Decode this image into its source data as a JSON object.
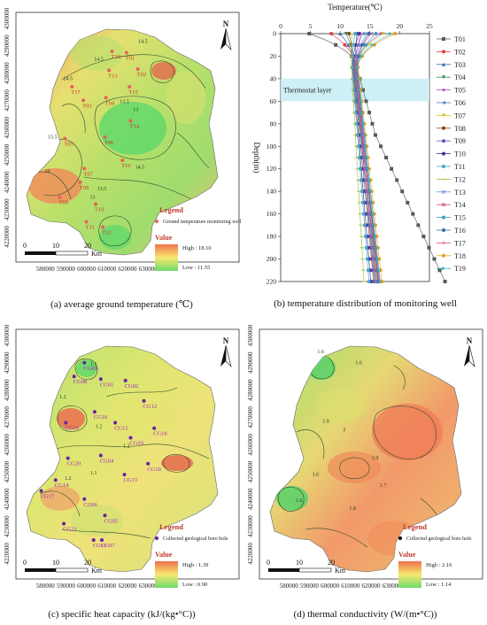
{
  "captions": {
    "a": "(a) average ground temperature (℃)",
    "b": "(b) temperature distribution of  monitoring well",
    "c": "(c) specific heat capacity (kJ/(kg•°C))",
    "d": "(d) thermal conductivity (W/(m•°C))"
  },
  "map_a": {
    "north": "N",
    "legend_title": "Legend",
    "legend_item": "Ground temperature monitoring well",
    "value_title": "Value",
    "high": "High : 18.10",
    "low": "Low : 11.55",
    "scale": [
      "0",
      "10",
      "20",
      "Km"
    ],
    "x_ticks": [
      "580000",
      "590000",
      "600000",
      "610000",
      "620000",
      "630000",
      "640000"
    ],
    "y_ticks": [
      "4300000",
      "4290000",
      "4280000",
      "4270000",
      "4260000",
      "4250000",
      "4240000",
      "4230000",
      "4220000"
    ],
    "point_color": "#e8615c",
    "wells": [
      {
        "name": "T18",
        "x": 612500,
        "y": 4288000
      },
      {
        "name": "T01",
        "x": 619500,
        "y": 4287500
      },
      {
        "name": "T13",
        "x": 611000,
        "y": 4281000
      },
      {
        "name": "T02",
        "x": 625000,
        "y": 4281500
      },
      {
        "name": "T17",
        "x": 593000,
        "y": 4275000
      },
      {
        "name": "T15",
        "x": 621000,
        "y": 4275000
      },
      {
        "name": "T03",
        "x": 598500,
        "y": 4270000
      },
      {
        "name": "T04",
        "x": 609500,
        "y": 4271000
      },
      {
        "name": "T14",
        "x": 621500,
        "y": 4262500
      },
      {
        "name": "T05",
        "x": 589500,
        "y": 4256000
      },
      {
        "name": "T06",
        "x": 609000,
        "y": 4256500
      },
      {
        "name": "T16",
        "x": 617500,
        "y": 4248000
      },
      {
        "name": "T07",
        "x": 599000,
        "y": 4245000
      },
      {
        "name": "T09",
        "x": 597000,
        "y": 4240000
      },
      {
        "name": "T08",
        "x": 587000,
        "y": 4234500
      },
      {
        "name": "T10",
        "x": 604500,
        "y": 4232000
      },
      {
        "name": "T11",
        "x": 600000,
        "y": 4225500
      },
      {
        "name": "T12",
        "x": 608000,
        "y": 4223500
      }
    ],
    "contour_labels": [
      {
        "t": "14.5",
        "x": 606000,
        "y": 4284500
      },
      {
        "t": "14.5",
        "x": 627500,
        "y": 4291000
      },
      {
        "t": "14.5",
        "x": 591000,
        "y": 4277500
      },
      {
        "t": "13.5",
        "x": 618500,
        "y": 4269000
      },
      {
        "t": "13",
        "x": 624000,
        "y": 4266000
      },
      {
        "t": "15.5",
        "x": 583500,
        "y": 4256000
      },
      {
        "t": "14.5",
        "x": 626000,
        "y": 4245000
      },
      {
        "t": "16",
        "x": 581000,
        "y": 4243500
      },
      {
        "t": "13",
        "x": 603000,
        "y": 4234000
      },
      {
        "t": "13.5",
        "x": 607500,
        "y": 4237000
      }
    ]
  },
  "chart_data": {
    "type": "line",
    "title": "Temperature(℃)",
    "ylabel": "Depth(m)",
    "xlim": [
      0,
      25
    ],
    "ylim": [
      0,
      220
    ],
    "x_ticks": [
      0,
      5,
      10,
      15,
      20,
      25
    ],
    "y_ticks": [
      0,
      20,
      40,
      60,
      80,
      100,
      120,
      140,
      160,
      180,
      200,
      220
    ],
    "annotation": "Thermostat layer",
    "annotation_band": [
      40,
      60
    ],
    "depths": [
      0,
      5,
      10,
      15,
      20,
      25,
      30,
      35,
      40,
      45,
      50,
      55,
      60,
      65,
      70,
      75,
      80,
      85,
      90,
      95,
      100,
      105,
      110,
      115,
      120,
      125,
      130,
      135,
      140,
      145,
      150,
      155,
      160,
      165,
      170,
      175,
      180,
      185,
      190,
      195,
      200,
      205,
      210,
      215,
      220
    ],
    "series": [
      {
        "name": "T01",
        "color": "#595959",
        "marker": "square",
        "surface": 4.8,
        "base": 12.8,
        "gradient": 0.052
      },
      {
        "name": "T02",
        "color": "#e04040",
        "marker": "circle",
        "surface": 8.5,
        "base": 12.6,
        "gradient": 0.021
      },
      {
        "name": "T03",
        "color": "#2f63b8",
        "marker": "triangle",
        "surface": 10.0,
        "base": 12.4,
        "gradient": 0.02
      },
      {
        "name": "T04",
        "color": "#2e8b57",
        "marker": "triangle-down",
        "surface": 11.0,
        "base": 12.3,
        "gradient": 0.019
      },
      {
        "name": "T05",
        "color": "#b050c0",
        "marker": "diamond",
        "surface": 16.8,
        "base": 12.5,
        "gradient": 0.021
      },
      {
        "name": "T06",
        "color": "#4a76c6",
        "marker": "triangle-left",
        "surface": 13.8,
        "base": 12.4,
        "gradient": 0.02
      },
      {
        "name": "T07",
        "color": "#d4c21a",
        "marker": "triangle-down",
        "surface": 17.2,
        "base": 12.8,
        "gradient": 0.018
      },
      {
        "name": "T08",
        "color": "#8b4513",
        "marker": "circle",
        "surface": 11.5,
        "base": 12.2,
        "gradient": 0.018
      },
      {
        "name": "T09",
        "color": "#5c5cb8",
        "marker": "star",
        "surface": 12.8,
        "base": 12.5,
        "gradient": 0.017
      },
      {
        "name": "T10",
        "color": "#333399",
        "marker": "pentagon",
        "surface": 13.2,
        "base": 12.1,
        "gradient": 0.016
      },
      {
        "name": "T11",
        "color": "#4aa3d8",
        "marker": "circle",
        "surface": 12.5,
        "base": 12.0,
        "gradient": 0.015
      },
      {
        "name": "T12",
        "color": "#a0c030",
        "marker": "dash",
        "surface": 12.0,
        "base": 11.9,
        "gradient": 0.011
      },
      {
        "name": "T13",
        "color": "#6b8ed6",
        "marker": "x",
        "surface": 14.5,
        "base": 12.6,
        "gradient": 0.018
      },
      {
        "name": "T14",
        "color": "#d24080",
        "marker": "x",
        "surface": 15.2,
        "base": 12.7,
        "gradient": 0.019
      },
      {
        "name": "T15",
        "color": "#3c9cd0",
        "marker": "star",
        "surface": 16.0,
        "base": 12.9,
        "gradient": 0.02
      },
      {
        "name": "T16",
        "color": "#2a6fb0",
        "marker": "circle",
        "surface": 14.8,
        "base": 12.8,
        "gradient": 0.019
      },
      {
        "name": "T17",
        "color": "#d94f8a",
        "marker": "plus",
        "surface": 13.5,
        "base": 12.6,
        "gradient": 0.018
      },
      {
        "name": "T18",
        "color": "#e8a020",
        "marker": "circle",
        "surface": 19.2,
        "base": 13.0,
        "gradient": 0.021
      },
      {
        "name": "T19",
        "color": "#30b0c0",
        "marker": "triangle-right",
        "surface": 18.5,
        "base": 12.9,
        "gradient": 0.02
      }
    ]
  },
  "map_c": {
    "north": "N",
    "legend_title": "Legend",
    "legend_item": "Collected geological bore hole",
    "value_title": "Value",
    "high": "High : 1.39",
    "low": "Low : 0.90",
    "scale": [
      "0",
      "10",
      "20",
      "Km"
    ],
    "x_ticks": [
      "580000",
      "590000",
      "600000",
      "610000",
      "620000",
      "630000",
      "640000"
    ],
    "y_ticks": [
      "4300000",
      "4290000",
      "4280000",
      "4270000",
      "4260000",
      "4250000",
      "4240000",
      "4230000",
      "4220000"
    ],
    "point_color": "#6a1fa8",
    "label_color": "#a020c0",
    "holes": [
      {
        "name": "CG09",
        "x": 599000,
        "y": 4290000
      },
      {
        "name": "CG08",
        "x": 594000,
        "y": 4285000
      },
      {
        "name": "CG01",
        "x": 607000,
        "y": 4284000
      },
      {
        "name": "CG02",
        "x": 619000,
        "y": 4283500
      },
      {
        "name": "CG12",
        "x": 628000,
        "y": 4276000
      },
      {
        "name": "CG16",
        "x": 604000,
        "y": 4272000
      },
      {
        "name": "CG19",
        "x": 590000,
        "y": 4268000
      },
      {
        "name": "CG15",
        "x": 614000,
        "y": 4268000
      },
      {
        "name": "CG18",
        "x": 633000,
        "y": 4266000
      },
      {
        "name": "CG03",
        "x": 621500,
        "y": 4262500
      },
      {
        "name": "CG20",
        "x": 591000,
        "y": 4255000
      },
      {
        "name": "CG04",
        "x": 607000,
        "y": 4256000
      },
      {
        "name": "CG10",
        "x": 630000,
        "y": 4253000
      },
      {
        "name": "CG13",
        "x": 618500,
        "y": 4249000
      },
      {
        "name": "CG14",
        "x": 585000,
        "y": 4247000
      },
      {
        "name": "CG17",
        "x": 578000,
        "y": 4243000
      },
      {
        "name": "CG06",
        "x": 599000,
        "y": 4240000
      },
      {
        "name": "CG05",
        "x": 609000,
        "y": 4234000
      },
      {
        "name": "CG21",
        "x": 589000,
        "y": 4231000
      },
      {
        "name": "CG11",
        "x": 603500,
        "y": 4225000
      },
      {
        "name": "CG07",
        "x": 607500,
        "y": 4225000
      }
    ],
    "contour_labels": [
      {
        "t": "1.1",
        "x": 603500,
        "y": 4289000
      },
      {
        "t": "1.2",
        "x": 588500,
        "y": 4277000
      },
      {
        "t": "1.2",
        "x": 606000,
        "y": 4266000
      },
      {
        "t": "1.2",
        "x": 619500,
        "y": 4259000
      },
      {
        "t": "1.1",
        "x": 603500,
        "y": 4249000
      },
      {
        "t": "1.2",
        "x": 591000,
        "y": 4247000
      }
    ]
  },
  "map_d": {
    "north": "N",
    "legend_title": "Legend",
    "legend_item": "Collected geological bore hole",
    "value_title": "Value",
    "high": "High : 2.16",
    "low": "Low : 1.14",
    "scale": [
      "0",
      "10",
      "20",
      "Km"
    ],
    "x_ticks": [
      "580000",
      "590000",
      "600000",
      "610000",
      "620000",
      "630000",
      "640000"
    ],
    "y_ticks": [
      "4300000",
      "4290000",
      "4280000",
      "4270000",
      "4260000",
      "4250000",
      "4240000",
      "4230000",
      "4220000"
    ],
    "contour_labels": [
      {
        "t": "1.6",
        "x": 595500,
        "y": 4293500
      },
      {
        "t": "1.6",
        "x": 614000,
        "y": 4289500
      },
      {
        "t": "1.9",
        "x": 598000,
        "y": 4268000
      },
      {
        "t": "2",
        "x": 607000,
        "y": 4265000
      },
      {
        "t": "1.9",
        "x": 622000,
        "y": 4254500
      },
      {
        "t": "1.6",
        "x": 593000,
        "y": 4248500
      },
      {
        "t": "1.7",
        "x": 626000,
        "y": 4244500
      },
      {
        "t": "1.6",
        "x": 585000,
        "y": 4239000
      },
      {
        "t": "1.8",
        "x": 611000,
        "y": 4236000
      }
    ]
  }
}
